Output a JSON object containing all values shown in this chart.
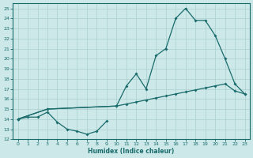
{
  "xlabel": "Humidex (Indice chaleur)",
  "xlim": [
    -0.5,
    23.5
  ],
  "ylim": [
    12,
    25.5
  ],
  "yticks": [
    12,
    13,
    14,
    15,
    16,
    17,
    18,
    19,
    20,
    21,
    22,
    23,
    24,
    25
  ],
  "xticks": [
    0,
    1,
    2,
    3,
    4,
    5,
    6,
    7,
    8,
    9,
    10,
    11,
    12,
    13,
    14,
    15,
    16,
    17,
    18,
    19,
    20,
    21,
    22,
    23
  ],
  "bg_color": "#cce8e8",
  "grid_color": "#aacfcf",
  "line_color": "#1a6b6b",
  "line1_x": [
    0,
    1,
    2,
    3,
    4,
    5,
    6,
    7,
    8,
    9
  ],
  "line1_y": [
    14.0,
    14.2,
    14.2,
    14.7,
    13.7,
    13.0,
    12.8,
    12.5,
    12.8,
    13.8
  ],
  "line2_x": [
    0,
    3,
    10,
    11,
    12,
    13,
    14,
    15,
    16,
    17,
    18,
    19,
    20,
    21,
    22,
    23
  ],
  "line2_y": [
    14.0,
    15.0,
    15.3,
    15.5,
    15.7,
    15.9,
    16.1,
    16.3,
    16.5,
    16.7,
    16.9,
    17.1,
    17.3,
    17.5,
    16.8,
    16.5
  ],
  "line3_x": [
    0,
    3,
    10,
    11,
    12,
    13,
    14,
    15,
    16,
    17,
    18,
    19,
    20,
    21,
    22,
    23
  ],
  "line3_y": [
    14.0,
    15.0,
    15.3,
    17.3,
    18.5,
    17.0,
    20.3,
    21.0,
    24.0,
    25.0,
    23.8,
    23.8,
    22.3,
    20.0,
    17.5,
    16.5
  ]
}
